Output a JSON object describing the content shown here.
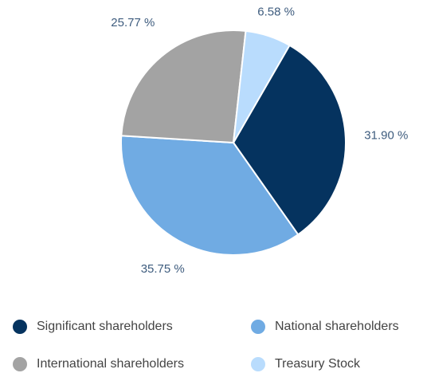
{
  "chart_data": {
    "type": "pie",
    "categories": [
      "Significant shareholders",
      "National shareholders",
      "International shareholders",
      "Treasury Stock"
    ],
    "values": [
      31.9,
      35.75,
      25.77,
      6.58
    ],
    "value_labels": [
      "31.90 %",
      "35.75 %",
      "25.77 %",
      "6.58 %"
    ],
    "colors": [
      "#05335f",
      "#70abe3",
      "#a3a3a3",
      "#b9dcfd"
    ],
    "legend": "bottom"
  }
}
